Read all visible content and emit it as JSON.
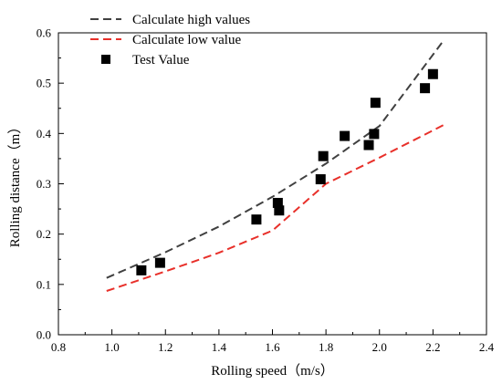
{
  "chart_data": {
    "type": "scatter",
    "title": "",
    "xlabel": "Rolling speed（m/s）",
    "ylabel": "Rolling distance（m）",
    "xlim": [
      0.8,
      2.4
    ],
    "ylim": [
      0.0,
      0.6
    ],
    "xticks": [
      "0.8",
      "1.0",
      "1.2",
      "1.4",
      "1.6",
      "1.8",
      "2.0",
      "2.2",
      "2.4"
    ],
    "yticks": [
      "0.0",
      "0.1",
      "0.2",
      "0.3",
      "0.4",
      "0.5",
      "0.6"
    ],
    "grid": false,
    "legend_position": "top-left",
    "series": [
      {
        "name": "Calculate high values",
        "kind": "dashed-line",
        "color": "#404040",
        "x": [
          0.98,
          1.2,
          1.4,
          1.6,
          1.8,
          2.0,
          2.24
        ],
        "y": [
          0.113,
          0.164,
          0.215,
          0.274,
          0.34,
          0.415,
          0.585
        ]
      },
      {
        "name": "Calculate low value",
        "kind": "dashed-line",
        "color": "#e8302a",
        "x": [
          0.98,
          1.2,
          1.4,
          1.6,
          1.8,
          2.0,
          2.24
        ],
        "y": [
          0.087,
          0.126,
          0.163,
          0.207,
          0.3,
          0.352,
          0.417
        ]
      },
      {
        "name": "Test Value",
        "kind": "square-markers",
        "color": "#000000",
        "x": [
          1.11,
          1.18,
          1.54,
          1.62,
          1.625,
          1.78,
          1.79,
          1.87,
          1.96,
          1.98,
          1.985,
          2.17,
          2.2
        ],
        "y": [
          0.128,
          0.143,
          0.229,
          0.262,
          0.247,
          0.309,
          0.355,
          0.395,
          0.377,
          0.399,
          0.461,
          0.49,
          0.518
        ]
      }
    ]
  }
}
